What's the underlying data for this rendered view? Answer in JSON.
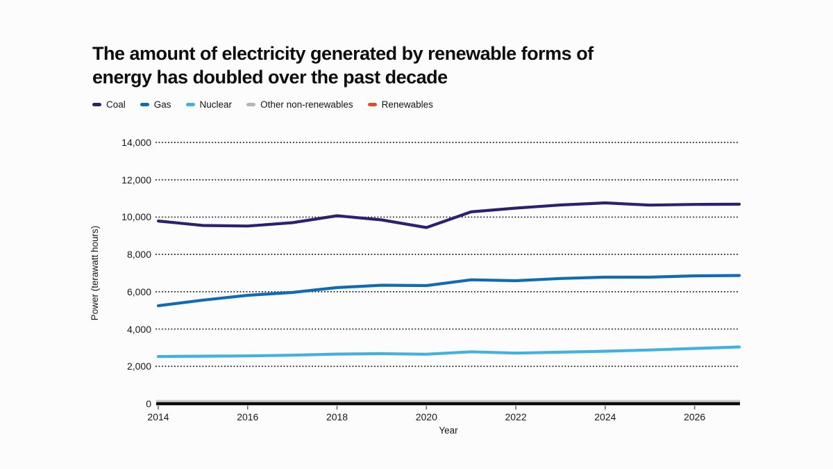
{
  "title": {
    "text": "The amount of electricity generated by renewable forms of energy has doubled over the past decade"
  },
  "legend": {
    "items": [
      {
        "label": "Coal",
        "color": "#2b2173"
      },
      {
        "label": "Gas",
        "color": "#0f6bb4"
      },
      {
        "label": "Nuclear",
        "color": "#41b1e2"
      },
      {
        "label": "Other non-renewables",
        "color": "#b5b5b5"
      },
      {
        "label": "Renewables",
        "color": "#dd4f26"
      }
    ]
  },
  "chart_data": {
    "type": "line",
    "title": "The amount of electricity generated by renewable forms of energy has doubled over the past decade",
    "xlabel": "Year",
    "ylabel": "Power (terawatt hours)",
    "x": [
      2014,
      2015,
      2016,
      2017,
      2018,
      2019,
      2020,
      2021,
      2022,
      2023,
      2024,
      2025,
      2026,
      2027
    ],
    "series": [
      {
        "name": "Coal",
        "color": "#2b2173",
        "visible": true,
        "values": [
          9790,
          9550,
          9520,
          9700,
          10070,
          9850,
          9440,
          10280,
          10480,
          10650,
          10760,
          10640,
          10680,
          10690
        ]
      },
      {
        "name": "Gas",
        "color": "#0f6bb4",
        "visible": true,
        "values": [
          5250,
          5550,
          5810,
          5960,
          6220,
          6350,
          6330,
          6640,
          6590,
          6710,
          6780,
          6780,
          6850,
          6870
        ]
      },
      {
        "name": "Nuclear",
        "color": "#41b1e2",
        "visible": true,
        "values": [
          2530,
          2545,
          2560,
          2600,
          2660,
          2680,
          2650,
          2780,
          2710,
          2760,
          2810,
          2880,
          2960,
          3040
        ]
      },
      {
        "name": "Other non-renewables",
        "color": "#b5b5b5",
        "visible": false,
        "values": []
      },
      {
        "name": "Renewables",
        "color": "#dd4f26",
        "visible": false,
        "values": []
      }
    ],
    "ylim": [
      0,
      14000
    ],
    "yticks": [
      0,
      2000,
      4000,
      6000,
      8000,
      10000,
      12000,
      14000
    ],
    "ytick_labels": [
      "0",
      "2,000",
      "4,000",
      "6,000",
      "8,000",
      "10,000",
      "12,000",
      "14,000"
    ],
    "xticks": [
      2014,
      2016,
      2018,
      2020,
      2022,
      2024,
      2026
    ],
    "xtick_labels": [
      "2014",
      "2016",
      "2018",
      "2020",
      "2022",
      "2024",
      "2026"
    ],
    "grid": "horizontal-dotted",
    "legend_position": "top-left",
    "colors": {
      "grid": "#1c1c1c",
      "axis": "#0a0a0a",
      "axis_top_stripe": "#c9c9c9",
      "tick": "#6b6b6b",
      "background": "#fcfcfc"
    }
  }
}
